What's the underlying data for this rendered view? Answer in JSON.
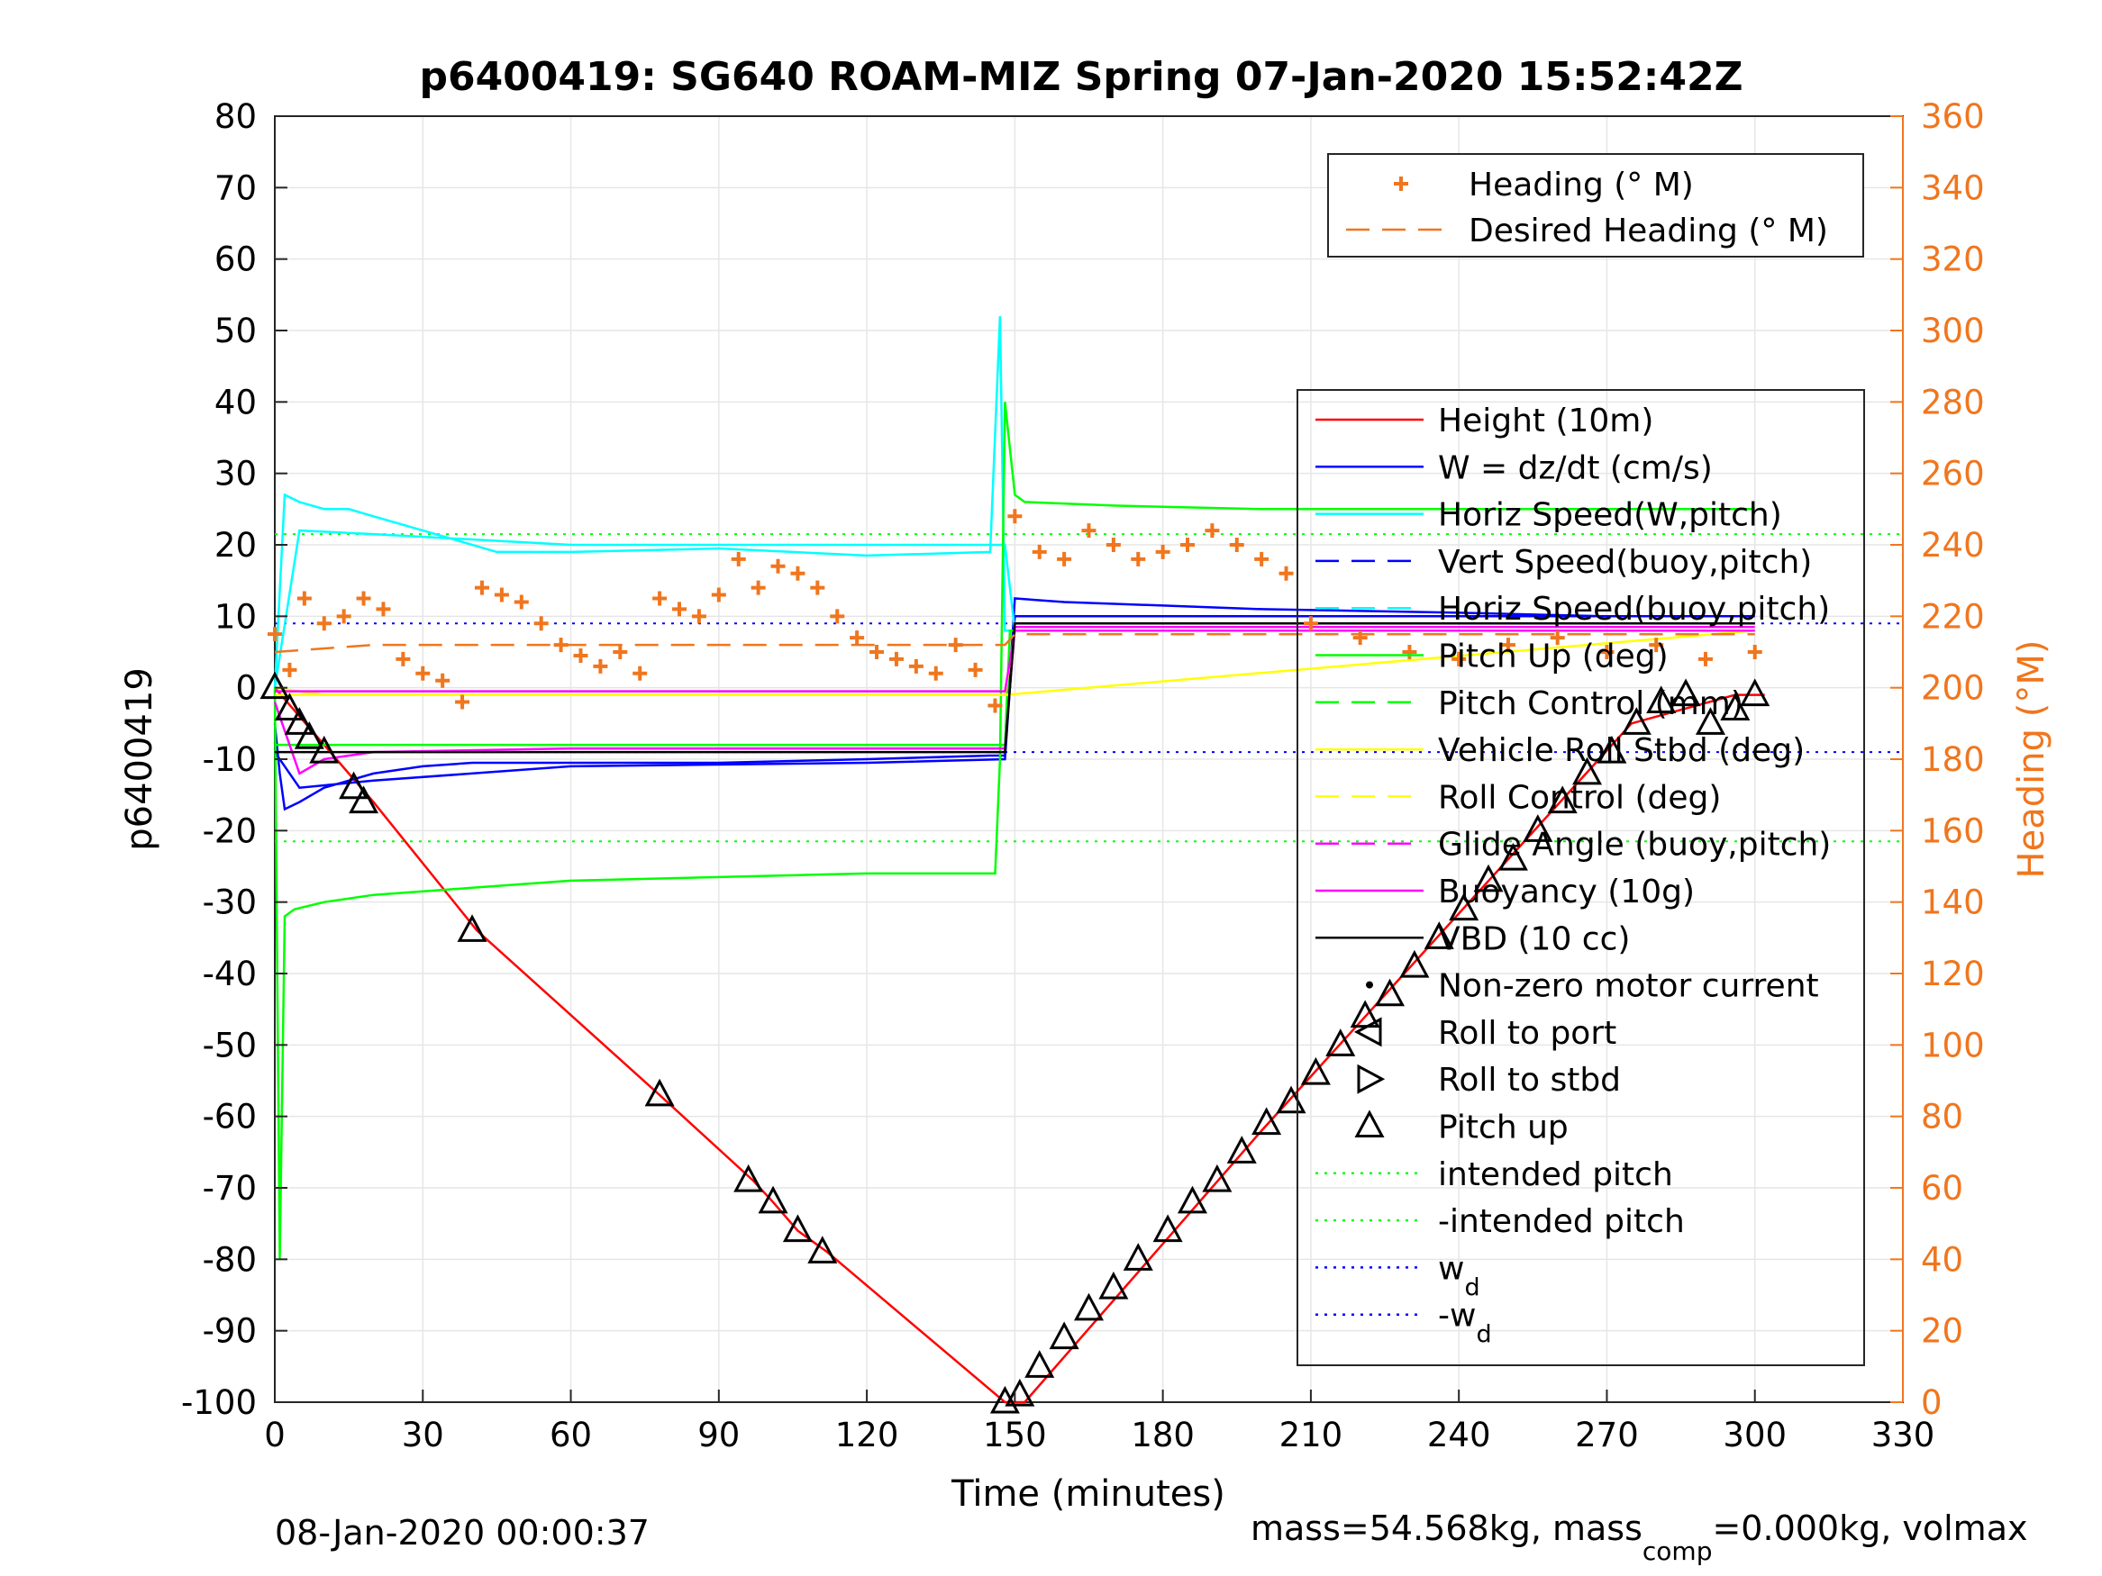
{
  "footer": {
    "date": "08-Jan-2020 00:00:37",
    "mass_a": "mass=54.568kg, mass",
    "mass_sub": "comp",
    "mass_b": "=0.000kg, volmax"
  },
  "chart_data": {
    "type": "line",
    "title": "p6400419: SG640 ROAM-MIZ Spring 07-Jan-2020 15:52:42Z",
    "xlabel": "Time (minutes)",
    "ylabel": "p6400419",
    "y2label": "Heading (°M)",
    "xlim": [
      0,
      330
    ],
    "ylim": [
      -100,
      80
    ],
    "y2lim": [
      0,
      360
    ],
    "xticks": [
      "0",
      "30",
      "60",
      "90",
      "120",
      "150",
      "180",
      "210",
      "240",
      "270",
      "300",
      "330"
    ],
    "yticks": [
      "80",
      "70",
      "60",
      "50",
      "40",
      "30",
      "20",
      "10",
      "0",
      "-10",
      "-20",
      "-30",
      "-40",
      "-50",
      "-60",
      "-70",
      "-80",
      "-90",
      "-100"
    ],
    "y2ticks": [
      "360",
      "340",
      "320",
      "300",
      "280",
      "260",
      "240",
      "220",
      "200",
      "180",
      "160",
      "140",
      "120",
      "100",
      "80",
      "60",
      "40",
      "20",
      "0"
    ],
    "grid": true,
    "legend_top": {
      "placement": "top-right",
      "entries": [
        {
          "label": "Heading (° M)",
          "color": "#F0761E",
          "marker": "plus"
        },
        {
          "label": "Desired Heading (° M)",
          "color": "#F0761E",
          "style": "dash"
        }
      ]
    },
    "legend_main": {
      "placement": "right",
      "entries": [
        {
          "label": "Height (10m)",
          "color": "#FF0000",
          "style": "solid"
        },
        {
          "label": "W = dz/dt (cm/s)",
          "color": "#0000FF",
          "style": "solid"
        },
        {
          "label": "Horiz Speed(W,pitch)",
          "color": "#00FFFF",
          "style": "solid"
        },
        {
          "label": "Vert Speed(buoy,pitch)",
          "color": "#0000FF",
          "style": "dash"
        },
        {
          "label": "Horiz Speed(buoy,pitch)",
          "color": "#00FFFF",
          "style": "dash"
        },
        {
          "label": "Pitch Up (deg)",
          "color": "#00FF00",
          "style": "solid"
        },
        {
          "label": "Pitch Control (mm)",
          "color": "#00FF00",
          "style": "dash"
        },
        {
          "label": "Vehicle Roll Stbd (deg)",
          "color": "#FFFF00",
          "style": "solid"
        },
        {
          "label": "Roll Control (deg)",
          "color": "#FFFF00",
          "style": "dash"
        },
        {
          "label": "Glide Angle (buoy,pitch)",
          "color": "#FF00FF",
          "style": "dash"
        },
        {
          "label": "Buoyancy (10g)",
          "color": "#FF00FF",
          "style": "solid"
        },
        {
          "label": "VBD (10 cc)",
          "color": "#000000",
          "style": "solid"
        },
        {
          "label": "Non-zero motor current",
          "color": "#000000",
          "marker": "dot"
        },
        {
          "label": "Roll to port",
          "color": "#000000",
          "marker": "triangle-left"
        },
        {
          "label": "Roll to stbd",
          "color": "#000000",
          "marker": "triangle-right"
        },
        {
          "label": "Pitch up",
          "color": "#000000",
          "marker": "triangle-up"
        },
        {
          "label": "intended pitch",
          "color": "#00FF00",
          "style": "dot"
        },
        {
          "label": "-intended pitch",
          "color": "#00FF00",
          "style": "dot"
        },
        {
          "label": "w",
          "sub": "d",
          "color": "#0000FF",
          "style": "dot"
        },
        {
          "label": "-w",
          "sub": "d",
          "color": "#0000FF",
          "style": "dot"
        }
      ]
    },
    "hlines": [
      {
        "name": "intended pitch",
        "y": 21.5,
        "color": "#00FF00"
      },
      {
        "name": "-intended pitch",
        "y": -21.5,
        "color": "#00FF00"
      },
      {
        "name": "w_d",
        "y": 9,
        "color": "#0000FF"
      },
      {
        "name": "-w_d",
        "y": -9,
        "color": "#0000FF"
      }
    ],
    "series": [
      {
        "name": "Height (10m)",
        "color": "#FF0000",
        "x": [
          0,
          20,
          41,
          78,
          97,
          101,
          106,
          112,
          148,
          152,
          200,
          250,
          275,
          296,
          302
        ],
        "y": [
          0,
          -16,
          -34,
          -57,
          -69,
          -72,
          -76,
          -79,
          -100,
          -100,
          -62,
          -24,
          -5,
          -1,
          -1
        ]
      },
      {
        "name": "W = dz/dt (cm/s)",
        "color": "#0000FF",
        "x": [
          0,
          1,
          2,
          5,
          10,
          20,
          30,
          40,
          60,
          90,
          120,
          145,
          148,
          150,
          160,
          180,
          200,
          240,
          270,
          300
        ],
        "y": [
          -5,
          -12,
          -17,
          -16,
          -14,
          -12,
          -11,
          -10.5,
          -10.5,
          -10.5,
          -10,
          -9.5,
          -9.5,
          12.5,
          12,
          11.5,
          11,
          10.5,
          10,
          10
        ]
      },
      {
        "name": "Horiz Speed(W,pitch)",
        "color": "#00FFFF",
        "x": [
          0,
          2,
          5,
          10,
          15,
          20,
          30,
          45,
          60,
          90,
          120,
          145,
          147,
          148,
          150,
          170,
          200,
          240,
          270,
          300
        ],
        "y": [
          0,
          27,
          26,
          25,
          25,
          24,
          22,
          19,
          19,
          19.5,
          18.5,
          19,
          52,
          8,
          8,
          8,
          8,
          8,
          8,
          8
        ]
      },
      {
        "name": "Vert Speed(buoy,pitch)",
        "color": "#0000FF",
        "x": [
          0,
          5,
          20,
          60,
          120,
          148,
          150,
          200,
          300
        ],
        "y": [
          -9,
          -14,
          -13,
          -11,
          -10.5,
          -10,
          10,
          10,
          10
        ]
      },
      {
        "name": "Horiz Speed(buoy,pitch)",
        "color": "#00FFFF",
        "x": [
          0,
          5,
          20,
          60,
          120,
          148,
          150,
          200,
          300
        ],
        "y": [
          0,
          22,
          21.5,
          20,
          20,
          20,
          8,
          8,
          8
        ]
      },
      {
        "name": "Pitch Up (deg)",
        "color": "#00FF00",
        "x": [
          0,
          1,
          2,
          4,
          10,
          20,
          40,
          60,
          90,
          120,
          146,
          147,
          148,
          150,
          152,
          170,
          200,
          240,
          270,
          300
        ],
        "y": [
          0,
          -80,
          -32,
          -31,
          -30,
          -29,
          -28,
          -27,
          -26.5,
          -26,
          -26,
          -10,
          40,
          27,
          26,
          25.5,
          25,
          25,
          25,
          25
        ]
      },
      {
        "name": "Pitch Control (mm)",
        "color": "#00FF00",
        "x": [
          0,
          5,
          148,
          149,
          300
        ],
        "y": [
          -8,
          -8,
          -8,
          8,
          8
        ]
      },
      {
        "name": "Vehicle Roll Stbd (deg)",
        "color": "#FFFF00",
        "x": [
          0,
          10,
          20,
          40,
          60,
          90,
          120,
          148,
          150,
          200,
          250,
          300
        ],
        "y": [
          0,
          -1,
          -1,
          -1,
          -1,
          -1,
          -1,
          -1,
          8,
          8,
          8,
          8
        ]
      },
      {
        "name": "Roll Control (deg)",
        "color": "#FFFF00",
        "x": [
          0,
          148,
          300
        ],
        "y": [
          -1,
          -1,
          8
        ]
      },
      {
        "name": "Glide Angle (buoy,pitch)",
        "color": "#FF00FF",
        "x": [
          0,
          148,
          150,
          300
        ],
        "y": [
          -0.5,
          -0.5,
          8,
          8
        ]
      },
      {
        "name": "Buoyancy (10g)",
        "color": "#FF00FF",
        "x": [
          0,
          5,
          10,
          20,
          60,
          120,
          148,
          150,
          300
        ],
        "y": [
          -2,
          -12,
          -10,
          -9,
          -8.5,
          -8.5,
          -8.5,
          8.5,
          8.5
        ]
      },
      {
        "name": "VBD (10 cc)",
        "color": "#000000",
        "x": [
          0,
          10,
          148,
          150,
          300
        ],
        "y": [
          -9,
          -9,
          -9,
          9,
          9
        ]
      },
      {
        "name": "Heading (° M)",
        "color": "#F0761E",
        "axis": "right",
        "x": [
          0,
          3,
          6,
          10,
          14,
          18,
          22,
          26,
          30,
          34,
          38,
          42,
          46,
          50,
          54,
          58,
          62,
          66,
          70,
          74,
          78,
          82,
          86,
          90,
          94,
          98,
          102,
          106,
          110,
          114,
          118,
          122,
          126,
          130,
          134,
          138,
          142,
          146,
          150,
          155,
          160,
          165,
          170,
          175,
          180,
          185,
          190,
          195,
          200,
          205,
          210,
          220,
          230,
          240,
          250,
          260,
          270,
          280,
          290,
          300
        ],
        "y": [
          215,
          205,
          225,
          218,
          220,
          225,
          222,
          208,
          204,
          202,
          196,
          228,
          226,
          224,
          218,
          212,
          209,
          206,
          210,
          204,
          225,
          222,
          220,
          226,
          236,
          228,
          234,
          232,
          228,
          220,
          214,
          210,
          208,
          206,
          204,
          212,
          205,
          195,
          248,
          238,
          236,
          244,
          240,
          236,
          238,
          240,
          244,
          240,
          236,
          232,
          218,
          214,
          210,
          208,
          212,
          214,
          210,
          212,
          208,
          210
        ]
      },
      {
        "name": "Desired Heading (° M)",
        "color": "#F0761E",
        "axis": "right",
        "style": "dash",
        "x": [
          0,
          20,
          40,
          60,
          100,
          148,
          150,
          200,
          300
        ],
        "y": [
          210,
          212,
          212,
          212,
          212,
          212,
          215,
          215,
          215
        ]
      },
      {
        "name": "Pitch up",
        "color": "#000000",
        "marker": "triangle-up",
        "x": [
          0,
          3,
          5,
          7,
          10,
          16,
          18,
          40,
          78,
          96,
          101,
          106,
          111,
          148,
          151,
          155,
          160,
          165,
          170,
          175,
          181,
          186,
          191,
          196,
          201,
          206,
          211,
          216,
          221,
          226,
          231,
          236,
          241,
          246,
          251,
          256,
          261,
          266,
          271,
          276,
          281,
          286,
          291,
          296,
          300
        ],
        "y": [
          0,
          -3,
          -5,
          -7,
          -9,
          -14,
          -16,
          -34,
          -57,
          -69,
          -72,
          -76,
          -79,
          -100,
          -99,
          -95,
          -91,
          -87,
          -84,
          -80,
          -76,
          -72,
          -69,
          -65,
          -61,
          -58,
          -54,
          -50,
          -46,
          -43,
          -39,
          -35,
          -31,
          -27,
          -24,
          -20,
          -16,
          -12,
          -9,
          -5,
          -2,
          -1,
          -5,
          -3,
          -1
        ]
      }
    ]
  }
}
